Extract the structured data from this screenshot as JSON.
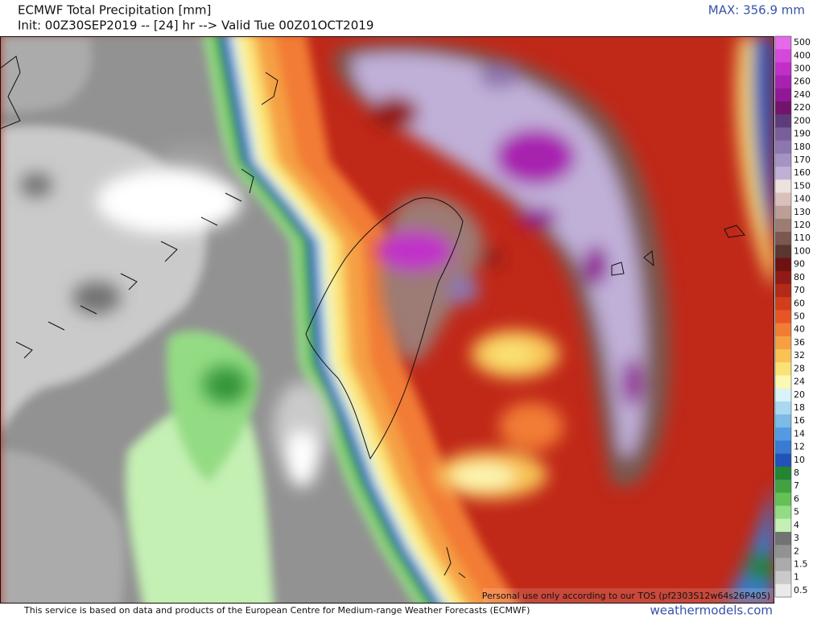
{
  "header": {
    "title": "ECMWF Total Precipitation [mm]",
    "init": "Init: 00Z30SEP2019 -- [24] hr --> Valid Tue 00Z01OCT2019",
    "max": "MAX: 356.9 mm"
  },
  "legend": {
    "levels": [
      {
        "value": 500,
        "color": "#e46ae8"
      },
      {
        "value": 400,
        "color": "#d448dc"
      },
      {
        "value": 300,
        "color": "#c030c8"
      },
      {
        "value": 260,
        "color": "#a822b0"
      },
      {
        "value": 240,
        "color": "#901896"
      },
      {
        "value": 220,
        "color": "#72146e"
      },
      {
        "value": 200,
        "color": "#5e3c7c"
      },
      {
        "value": 190,
        "color": "#7a5e9c"
      },
      {
        "value": 180,
        "color": "#8e76ae"
      },
      {
        "value": 170,
        "color": "#a494c4"
      },
      {
        "value": 160,
        "color": "#c0b0d8"
      },
      {
        "value": 150,
        "color": "#eee2de"
      },
      {
        "value": 140,
        "color": "#dac0ba"
      },
      {
        "value": 130,
        "color": "#bc9e96"
      },
      {
        "value": 120,
        "color": "#9c7c74"
      },
      {
        "value": 110,
        "color": "#7a5850"
      },
      {
        "value": 100,
        "color": "#5a3630"
      },
      {
        "value": 90,
        "color": "#6c1210"
      },
      {
        "value": 80,
        "color": "#921a16"
      },
      {
        "value": 70,
        "color": "#b22a18"
      },
      {
        "value": 60,
        "color": "#d23e1c"
      },
      {
        "value": 50,
        "color": "#ea5424"
      },
      {
        "value": 40,
        "color": "#f27c34"
      },
      {
        "value": 36,
        "color": "#f5a044"
      },
      {
        "value": 32,
        "color": "#f8c254"
      },
      {
        "value": 28,
        "color": "#fae274"
      },
      {
        "value": 24,
        "color": "#fcf8b4"
      },
      {
        "value": 20,
        "color": "#d8f4f8"
      },
      {
        "value": 18,
        "color": "#aad8f0"
      },
      {
        "value": 16,
        "color": "#7cbae8"
      },
      {
        "value": 14,
        "color": "#549ae0"
      },
      {
        "value": 12,
        "color": "#3a7ad0"
      },
      {
        "value": 10,
        "color": "#2252b8"
      },
      {
        "value": 8,
        "color": "#248432"
      },
      {
        "value": 7,
        "color": "#42a242"
      },
      {
        "value": 6,
        "color": "#64c254"
      },
      {
        "value": 5,
        "color": "#94dc84"
      },
      {
        "value": 4,
        "color": "#c4f0b4"
      },
      {
        "value": 3,
        "color": "#727272"
      },
      {
        "value": 2,
        "color": "#929292"
      },
      {
        "value": 1.5,
        "color": "#ababab"
      },
      {
        "value": 1,
        "color": "#cacaca"
      },
      {
        "value": 0.5,
        "color": "#eaeaea"
      }
    ]
  },
  "map": {
    "notice": "Personal use only according to our TOS (pf2303S12w64s26P405)"
  },
  "footer": {
    "source": "This service is based on data and products of the European Centre for Medium-range Weather Forecasts (ECMWF)",
    "site": "weathermodels.com"
  }
}
